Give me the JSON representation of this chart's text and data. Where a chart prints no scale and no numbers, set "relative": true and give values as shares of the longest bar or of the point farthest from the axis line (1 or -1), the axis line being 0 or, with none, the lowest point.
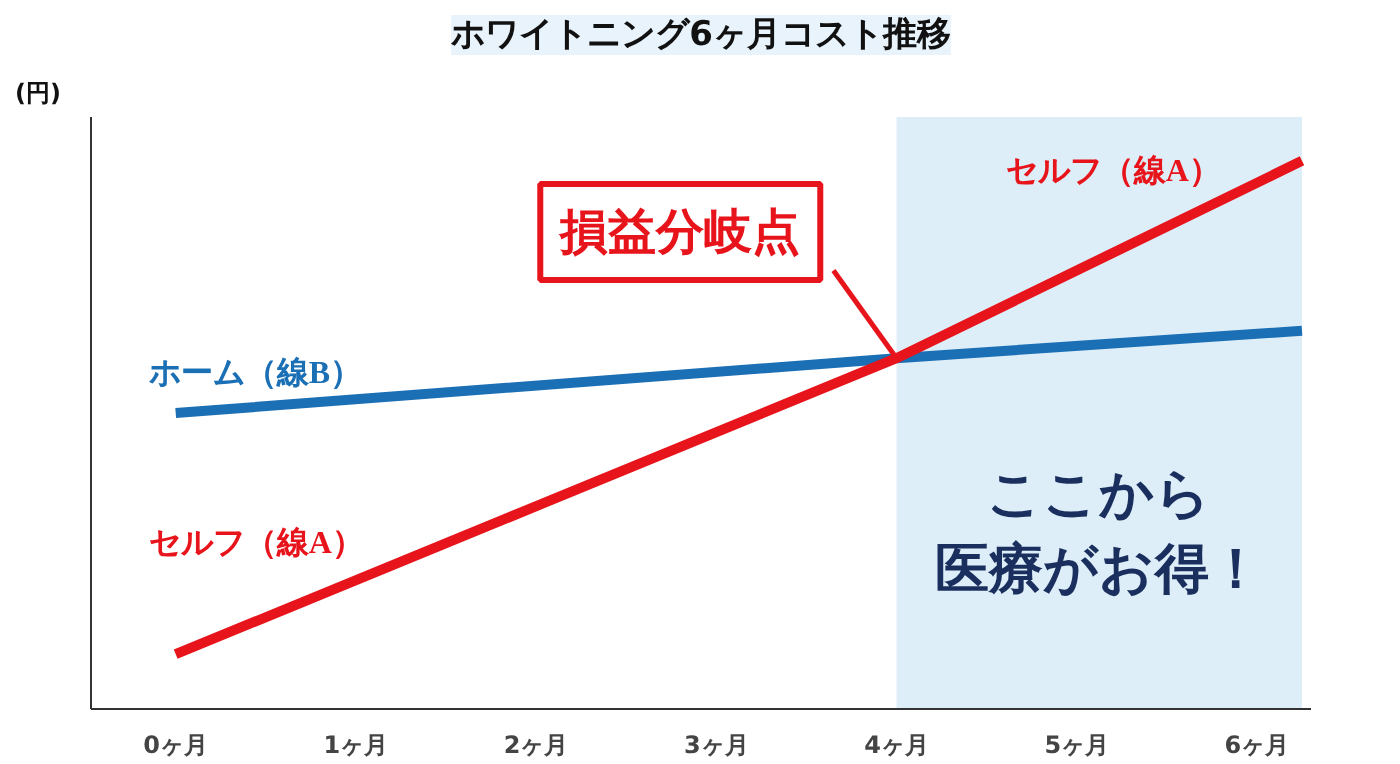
{
  "chart_data": {
    "type": "line",
    "title": "ホワイトニング6ヶ月コスト推移",
    "ylabel": "(円)",
    "relative": true,
    "xlim": [
      -0.47,
      6.3
    ],
    "xticks": [
      {
        "value": 0,
        "label": "0ヶ月"
      },
      {
        "value": 1,
        "label": "1ヶ月"
      },
      {
        "value": 2,
        "label": "2ヶ月"
      },
      {
        "value": 3,
        "label": "3ヶ月"
      },
      {
        "value": 4,
        "label": "4ヶ月"
      },
      {
        "value": 5,
        "label": "5ヶ月"
      },
      {
        "value": 6,
        "label": "6ヶ月"
      }
    ],
    "series": [
      {
        "name": "ホーム（線B）",
        "color": "#1b6fb5",
        "x": [
          0,
          4,
          6.25
        ],
        "values": [
          0.54,
          0.64,
          0.69
        ]
      },
      {
        "name": "セルフ（線A）",
        "color": "#e8141b",
        "x": [
          0,
          4,
          6.25
        ],
        "values": [
          0.1,
          0.64,
          1.0
        ]
      }
    ],
    "bands": [
      {
        "axis": "x",
        "from": 4,
        "to": 6.25,
        "label": "ここから医療がお得！",
        "color": "#ddeef9"
      }
    ],
    "annotations": [
      {
        "text": "損益分岐点",
        "x": 4,
        "y": 0.64
      }
    ],
    "grid": false
  }
}
